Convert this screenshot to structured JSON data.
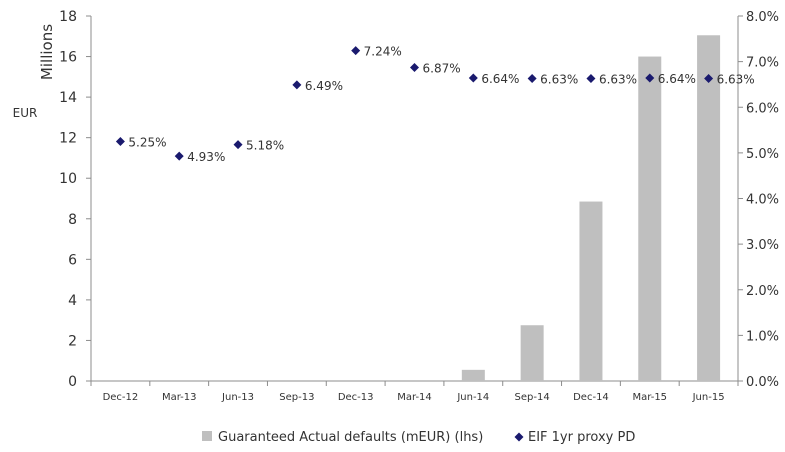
{
  "chart_data": {
    "type": "bar",
    "categories": [
      "Dec-12",
      "Mar-13",
      "Jun-13",
      "Sep-13",
      "Dec-13",
      "Mar-14",
      "Jun-14",
      "Sep-14",
      "Dec-14",
      "Mar-15",
      "Jun-15"
    ],
    "series": [
      {
        "name": "Guaranteed Actual defaults (mEUR) (lhs)",
        "type": "bar",
        "axis": "left",
        "color": "#bfbfbf",
        "values": [
          0,
          0,
          0,
          0,
          0,
          0,
          0.55,
          2.75,
          8.85,
          16.0,
          17.05
        ]
      },
      {
        "name": "EIF 1yr proxy PD",
        "type": "scatter",
        "axis": "right",
        "color": "#1a1a6e",
        "values": [
          5.25,
          4.93,
          5.18,
          6.49,
          7.24,
          6.87,
          6.64,
          6.63,
          6.63,
          6.64,
          6.63
        ],
        "labels": [
          "5.25%",
          "4.93%",
          "5.18%",
          "6.49%",
          "7.24%",
          "6.87%",
          "6.64%",
          "6.63%",
          "6.63%",
          "6.64%",
          "6.63%"
        ]
      }
    ],
    "y_left": {
      "label_top": "Millions",
      "label_unit": "EUR",
      "ylim": [
        0,
        18
      ],
      "ticks": [
        "0",
        "2",
        "4",
        "6",
        "8",
        "10",
        "12",
        "14",
        "16",
        "18"
      ]
    },
    "y_right": {
      "ylim": [
        0,
        8
      ],
      "ticks": [
        "0.0%",
        "1.0%",
        "2.0%",
        "3.0%",
        "4.0%",
        "5.0%",
        "6.0%",
        "7.0%",
        "8.0%"
      ]
    },
    "legend_position": "bottom-center",
    "grid": false
  }
}
